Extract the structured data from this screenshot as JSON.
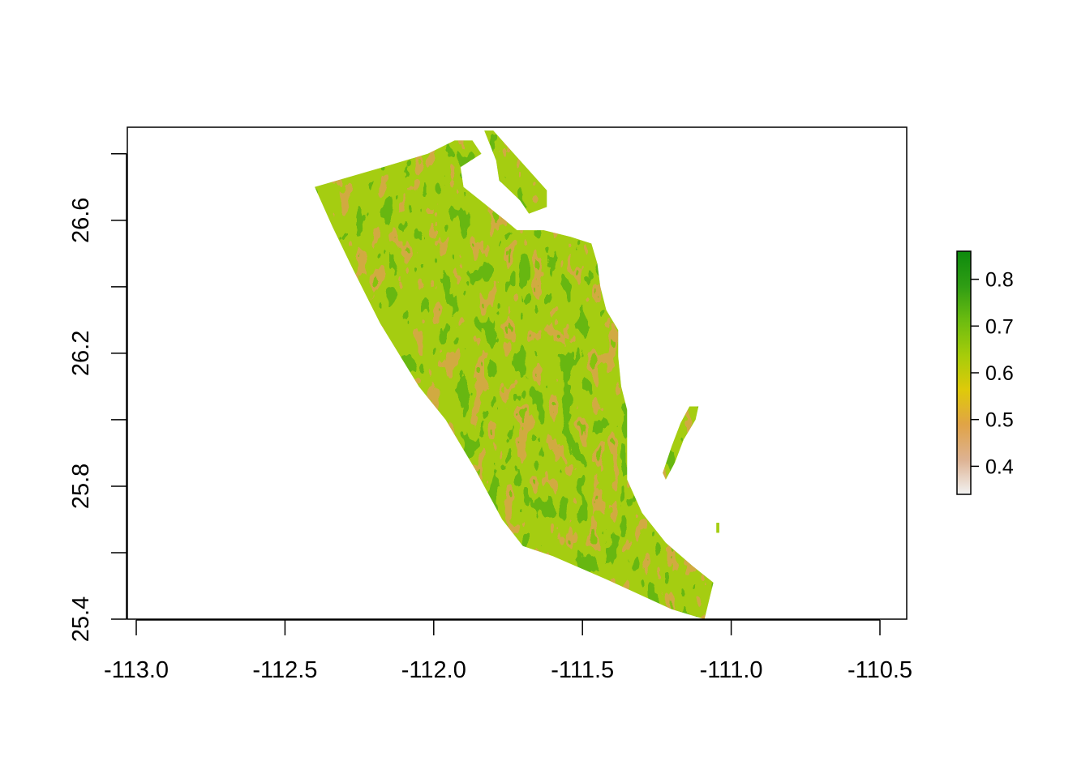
{
  "chart_data": {
    "type": "heatmap",
    "title": "",
    "xlabel": "",
    "ylabel": "",
    "x_axis": {
      "ticks": [
        -113.0,
        -112.5,
        -112.0,
        -111.5,
        -111.0,
        -110.5
      ],
      "tick_labels": [
        "-113.0",
        "-112.5",
        "-112.0",
        "-111.5",
        "-111.0",
        "-110.5"
      ],
      "range": [
        -113.03,
        -110.41
      ]
    },
    "y_axis": {
      "ticks": [
        25.4,
        25.6,
        25.8,
        26.0,
        26.2,
        26.4,
        26.6,
        26.8
      ],
      "tick_labels": [
        "25.4",
        "",
        "25.8",
        "",
        "26.2",
        "",
        "26.6",
        ""
      ],
      "range": [
        25.4,
        26.88
      ]
    },
    "grid": false,
    "raster": {
      "value_range": [
        0.34,
        0.86
      ],
      "typical_values": [
        0.55,
        0.75
      ],
      "regions": [
        {
          "name": "mainland",
          "polygon": [
            [
              -112.4,
              26.7
            ],
            [
              -112.17,
              26.76
            ],
            [
              -112.02,
              26.8
            ],
            [
              -111.93,
              26.84
            ],
            [
              -111.87,
              26.84
            ],
            [
              -111.84,
              26.8
            ],
            [
              -111.91,
              26.76
            ],
            [
              -111.9,
              26.7
            ],
            [
              -111.83,
              26.65
            ],
            [
              -111.76,
              26.6
            ],
            [
              -111.72,
              26.57
            ],
            [
              -111.63,
              26.57
            ],
            [
              -111.54,
              26.55
            ],
            [
              -111.47,
              26.53
            ],
            [
              -111.45,
              26.47
            ],
            [
              -111.44,
              26.4
            ],
            [
              -111.42,
              26.33
            ],
            [
              -111.38,
              26.27
            ],
            [
              -111.38,
              26.19
            ],
            [
              -111.37,
              26.1
            ],
            [
              -111.35,
              26.03
            ],
            [
              -111.35,
              25.94
            ],
            [
              -111.35,
              25.88
            ],
            [
              -111.35,
              25.82
            ],
            [
              -111.3,
              25.72
            ],
            [
              -111.22,
              25.63
            ],
            [
              -111.13,
              25.56
            ],
            [
              -111.06,
              25.51
            ],
            [
              -111.09,
              25.4
            ],
            [
              -111.2,
              25.43
            ],
            [
              -111.42,
              25.52
            ],
            [
              -111.6,
              25.59
            ],
            [
              -111.7,
              25.62
            ],
            [
              -111.77,
              25.7
            ],
            [
              -111.86,
              25.85
            ],
            [
              -111.96,
              26.0
            ],
            [
              -112.05,
              26.1
            ],
            [
              -112.18,
              26.29
            ],
            [
              -112.27,
              26.45
            ],
            [
              -112.34,
              26.58
            ]
          ]
        },
        {
          "name": "northern-peninsula",
          "polygon": [
            [
              -111.83,
              26.87
            ],
            [
              -111.8,
              26.87
            ],
            [
              -111.75,
              26.82
            ],
            [
              -111.68,
              26.75
            ],
            [
              -111.62,
              26.69
            ],
            [
              -111.62,
              26.64
            ],
            [
              -111.68,
              26.62
            ],
            [
              -111.71,
              26.66
            ],
            [
              -111.78,
              26.72
            ],
            [
              -111.79,
              26.78
            ]
          ]
        },
        {
          "name": "offshore-island",
          "polygon": [
            [
              -111.14,
              26.04
            ],
            [
              -111.11,
              26.04
            ],
            [
              -111.12,
              26.0
            ],
            [
              -111.16,
              25.94
            ],
            [
              -111.19,
              25.87
            ],
            [
              -111.22,
              25.82
            ],
            [
              -111.23,
              25.84
            ],
            [
              -111.2,
              25.92
            ],
            [
              -111.17,
              25.99
            ]
          ]
        },
        {
          "name": "islet",
          "polygon": [
            [
              -111.05,
              25.69
            ],
            [
              -111.04,
              25.69
            ],
            [
              -111.04,
              25.66
            ],
            [
              -111.05,
              25.66
            ]
          ]
        }
      ]
    },
    "legend": {
      "type": "colorbar",
      "placement": "right",
      "range": [
        0.34,
        0.86
      ],
      "ticks": [
        0.4,
        0.5,
        0.6,
        0.7,
        0.8
      ],
      "tick_labels": [
        "0.4",
        "0.5",
        "0.6",
        "0.7",
        "0.8"
      ],
      "colors": [
        "#f2f2f2",
        "#ddb292",
        "#e0a347",
        "#dfca0a",
        "#a6cc0a",
        "#6cbc10",
        "#2f9d14",
        "#0d8a0d"
      ]
    }
  }
}
